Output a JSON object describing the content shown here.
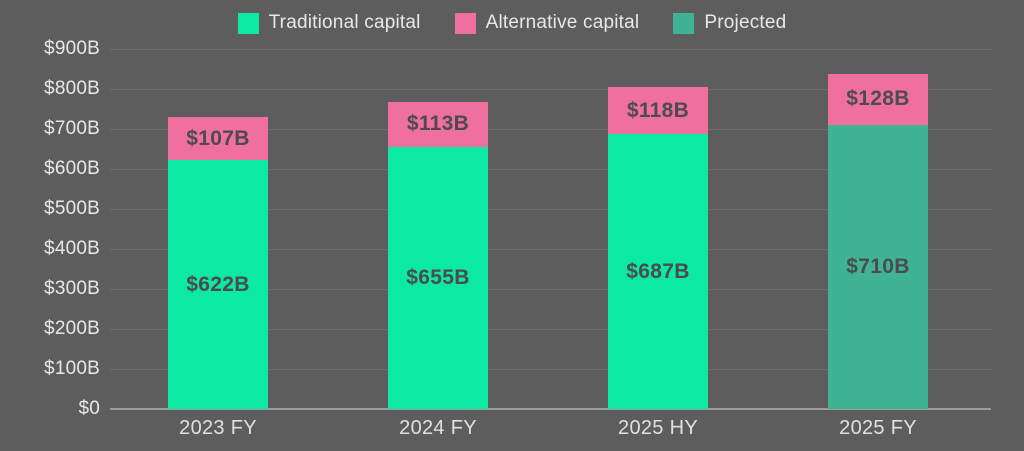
{
  "legend": {
    "items": [
      {
        "label": "Traditional capital",
        "color": "#0be9a3"
      },
      {
        "label": "Alternative capital",
        "color": "#ef6f9f"
      },
      {
        "label": "Projected",
        "color": "#3fb394"
      }
    ]
  },
  "colors": {
    "background": "#5d5d5d",
    "gridline": "#6e6e6e",
    "axis_line": "#9c9c9c",
    "axis_text": "#e8e8e8",
    "bar_value_text": "#4c4c4c"
  },
  "chart_data": {
    "type": "bar",
    "stacked": true,
    "title": "",
    "xlabel": "",
    "ylabel": "",
    "grid": true,
    "legend_position": "top",
    "categories": [
      "2023 FY",
      "2024 FY",
      "2025 HY",
      "2025 FY"
    ],
    "series": [
      {
        "name": "Traditional capital",
        "color": "#0be9a3",
        "values": [
          622,
          655,
          687,
          0
        ]
      },
      {
        "name": "Projected",
        "color": "#3fb394",
        "values": [
          0,
          0,
          0,
          710
        ]
      },
      {
        "name": "Alternative capital",
        "color": "#ef6f9f",
        "values": [
          107,
          113,
          118,
          128
        ]
      }
    ],
    "bars": [
      {
        "category": "2023 FY",
        "segments": [
          {
            "series": "Traditional capital",
            "value": 622,
            "label": "$622B",
            "color": "#0be9a3"
          },
          {
            "series": "Alternative capital",
            "value": 107,
            "label": "$107B",
            "color": "#ef6f9f"
          }
        ]
      },
      {
        "category": "2024 FY",
        "segments": [
          {
            "series": "Traditional capital",
            "value": 655,
            "label": "$655B",
            "color": "#0be9a3"
          },
          {
            "series": "Alternative capital",
            "value": 113,
            "label": "$113B",
            "color": "#ef6f9f"
          }
        ]
      },
      {
        "category": "2025 HY",
        "segments": [
          {
            "series": "Traditional capital",
            "value": 687,
            "label": "$687B",
            "color": "#0be9a3"
          },
          {
            "series": "Alternative capital",
            "value": 118,
            "label": "$118B",
            "color": "#ef6f9f"
          }
        ]
      },
      {
        "category": "2025 FY",
        "segments": [
          {
            "series": "Projected",
            "value": 710,
            "label": "$710B",
            "color": "#3fb394"
          },
          {
            "series": "Alternative capital",
            "value": 128,
            "label": "$128B",
            "color": "#ef6f9f"
          }
        ]
      }
    ],
    "y_axis": {
      "min": 0,
      "max": 900,
      "step": 100,
      "tick_labels": [
        "$0",
        "$100B",
        "$200B",
        "$300B",
        "$400B",
        "$500B",
        "$600B",
        "$700B",
        "$800B",
        "$900B"
      ]
    }
  }
}
